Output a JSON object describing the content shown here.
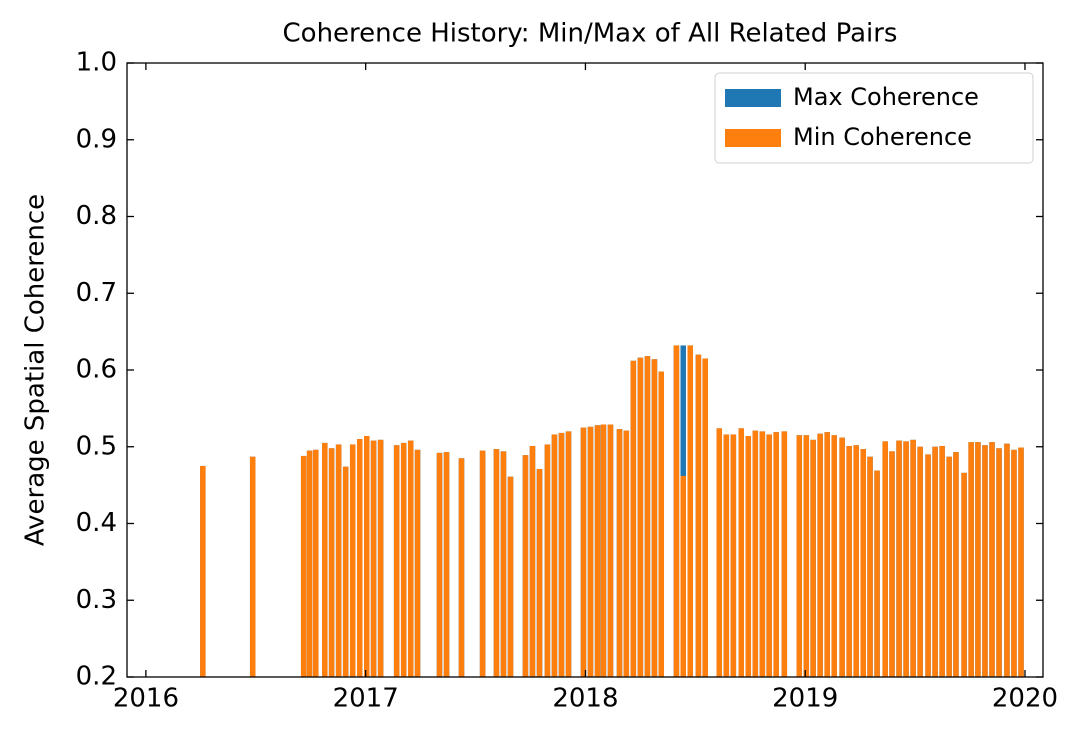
{
  "chart_data": {
    "type": "bar",
    "title": "Coherence History: Min/Max of All Related Pairs",
    "ylabel": "Average Spatial Coherence",
    "x": [
      2016.259,
      2016.486,
      2016.718,
      2016.745,
      2016.773,
      2016.814,
      2016.845,
      2016.877,
      2016.909,
      2016.941,
      2016.973,
      2017.005,
      2017.036,
      2017.068,
      2017.141,
      2017.173,
      2017.205,
      2017.236,
      2017.336,
      2017.368,
      2017.436,
      2017.532,
      2017.595,
      2017.627,
      2017.659,
      2017.727,
      2017.759,
      2017.791,
      2017.827,
      2017.859,
      2017.891,
      2017.923,
      2017.991,
      2018.023,
      2018.055,
      2018.082,
      2018.114,
      2018.155,
      2018.186,
      2018.218,
      2018.25,
      2018.282,
      2018.314,
      2018.345,
      2018.414,
      2018.445,
      2018.477,
      2018.514,
      2018.545,
      2018.609,
      2018.641,
      2018.673,
      2018.709,
      2018.741,
      2018.773,
      2018.805,
      2018.836,
      2018.868,
      2018.905,
      2018.973,
      2019.005,
      2019.036,
      2019.068,
      2019.1,
      2019.132,
      2019.168,
      2019.2,
      2019.232,
      2019.264,
      2019.295,
      2019.327,
      2019.364,
      2019.395,
      2019.427,
      2019.459,
      2019.491,
      2019.523,
      2019.559,
      2019.591,
      2019.623,
      2019.655,
      2019.686,
      2019.723,
      2019.755,
      2019.786,
      2019.818,
      2019.85,
      2019.882,
      2019.918,
      2019.95,
      2019.982
    ],
    "series": [
      {
        "name": "Max Coherence",
        "color": "#1f77b4",
        "values": [
          0.475,
          0.487,
          0.488,
          0.495,
          0.496,
          0.505,
          0.498,
          0.503,
          0.474,
          0.503,
          0.51,
          0.514,
          0.508,
          0.509,
          0.502,
          0.505,
          0.508,
          0.496,
          0.492,
          0.493,
          0.485,
          0.495,
          0.497,
          0.494,
          0.461,
          0.489,
          0.501,
          0.471,
          0.503,
          0.516,
          0.518,
          0.52,
          0.525,
          0.526,
          0.528,
          0.529,
          0.529,
          0.523,
          0.521,
          0.612,
          0.616,
          0.618,
          0.614,
          0.598,
          0.632,
          0.632,
          0.632,
          0.62,
          0.615,
          0.524,
          0.516,
          0.516,
          0.524,
          0.514,
          0.521,
          0.52,
          0.516,
          0.519,
          0.52,
          0.515,
          0.515,
          0.509,
          0.517,
          0.519,
          0.515,
          0.512,
          0.501,
          0.502,
          0.497,
          0.487,
          0.469,
          0.507,
          0.494,
          0.508,
          0.507,
          0.509,
          0.5,
          0.49,
          0.5,
          0.501,
          0.487,
          0.493,
          0.466,
          0.506,
          0.506,
          0.502,
          0.506,
          0.498,
          0.504,
          0.496,
          0.499
        ]
      },
      {
        "name": "Min Coherence",
        "color": "#ff7f0e",
        "values": [
          0.475,
          0.487,
          0.488,
          0.495,
          0.496,
          0.505,
          0.498,
          0.503,
          0.474,
          0.503,
          0.51,
          0.514,
          0.508,
          0.509,
          0.502,
          0.505,
          0.508,
          0.496,
          0.492,
          0.493,
          0.485,
          0.495,
          0.497,
          0.494,
          0.461,
          0.489,
          0.501,
          0.471,
          0.503,
          0.516,
          0.518,
          0.52,
          0.525,
          0.526,
          0.528,
          0.529,
          0.529,
          0.523,
          0.521,
          0.612,
          0.616,
          0.618,
          0.614,
          0.598,
          0.632,
          0.462,
          0.632,
          0.62,
          0.615,
          0.524,
          0.516,
          0.516,
          0.524,
          0.514,
          0.521,
          0.52,
          0.516,
          0.519,
          0.52,
          0.515,
          0.515,
          0.509,
          0.517,
          0.519,
          0.515,
          0.512,
          0.501,
          0.502,
          0.497,
          0.487,
          0.469,
          0.507,
          0.494,
          0.508,
          0.507,
          0.509,
          0.5,
          0.49,
          0.5,
          0.501,
          0.487,
          0.493,
          0.466,
          0.506,
          0.506,
          0.502,
          0.506,
          0.498,
          0.504,
          0.496,
          0.499
        ]
      }
    ],
    "xlim": [
      2015.914,
      2020.082
    ],
    "xticks": [
      2016,
      2017,
      2018,
      2019,
      2020
    ],
    "ylim": [
      0.2,
      1.0
    ],
    "yticks": [
      0.2,
      0.3,
      0.4,
      0.5,
      0.6,
      0.7,
      0.8,
      0.9,
      {
        "value": 1.0,
        "label": "1.0"
      }
    ],
    "legend": "upper right"
  }
}
